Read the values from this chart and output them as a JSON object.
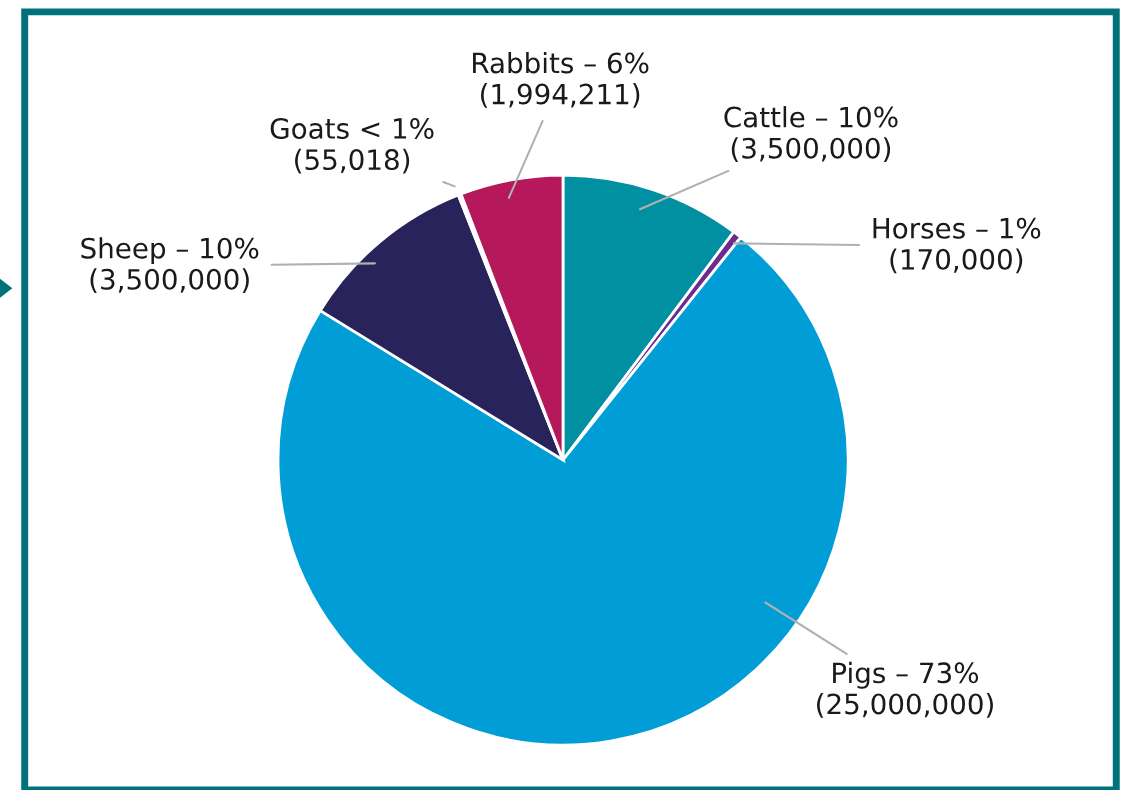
{
  "chart_data": {
    "type": "pie",
    "categories": [
      "Cattle – 10%",
      "Horses – 1%",
      "Pigs – 73%",
      "Sheep – 10%",
      "Goats < 1%",
      "Rabbits – 6%"
    ],
    "values": [
      3500000,
      170000,
      25000000,
      3500000,
      55018,
      1994211
    ],
    "value_labels": [
      "(3,500,000)",
      "(170,000)",
      "(25,000,000)",
      "(3,500,000)",
      "(55,018)",
      "(1,994,211)"
    ],
    "colors": [
      "#0090a2",
      "#6b2c8e",
      "#009dd6",
      "#29235c",
      "#bdbdbd",
      "#b5195b"
    ]
  }
}
